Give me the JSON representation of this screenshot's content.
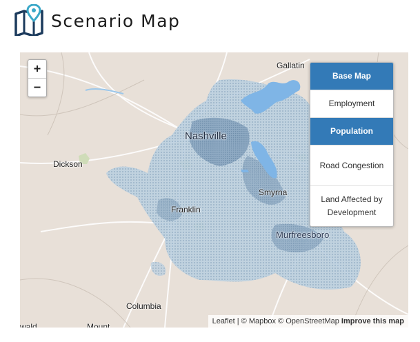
{
  "header": {
    "title": "Scenario Map",
    "logo_icon": "map-pin-icon",
    "logo_color": "#1b3a5c",
    "pin_color": "#3aa8c8"
  },
  "map": {
    "zoom_in_label": "+",
    "zoom_out_label": "−",
    "labels": {
      "gallatin": "Gallatin",
      "nashville": "Nashville",
      "dickson": "Dickson",
      "smyrna": "Smyrna",
      "franklin": "Franklin",
      "murfreesboro": "Murfreesboro",
      "columbia": "Columbia",
      "mount": "Mount",
      "ewald": "wald"
    },
    "attribution": {
      "leaflet": "Leaflet",
      "sep1": " | © ",
      "mapbox": "Mapbox",
      "sep2": " © ",
      "osm": "OpenStreetMap",
      "improve": "Improve this map"
    }
  },
  "layers": {
    "items": [
      {
        "label": "Base Map",
        "active": true
      },
      {
        "label": "Employment",
        "active": false
      },
      {
        "label": "Population",
        "active": true
      },
      {
        "label": "Road Congestion",
        "active": false
      },
      {
        "label": "Land Affected by Development",
        "active": false
      }
    ],
    "active_color": "#337ab7"
  }
}
